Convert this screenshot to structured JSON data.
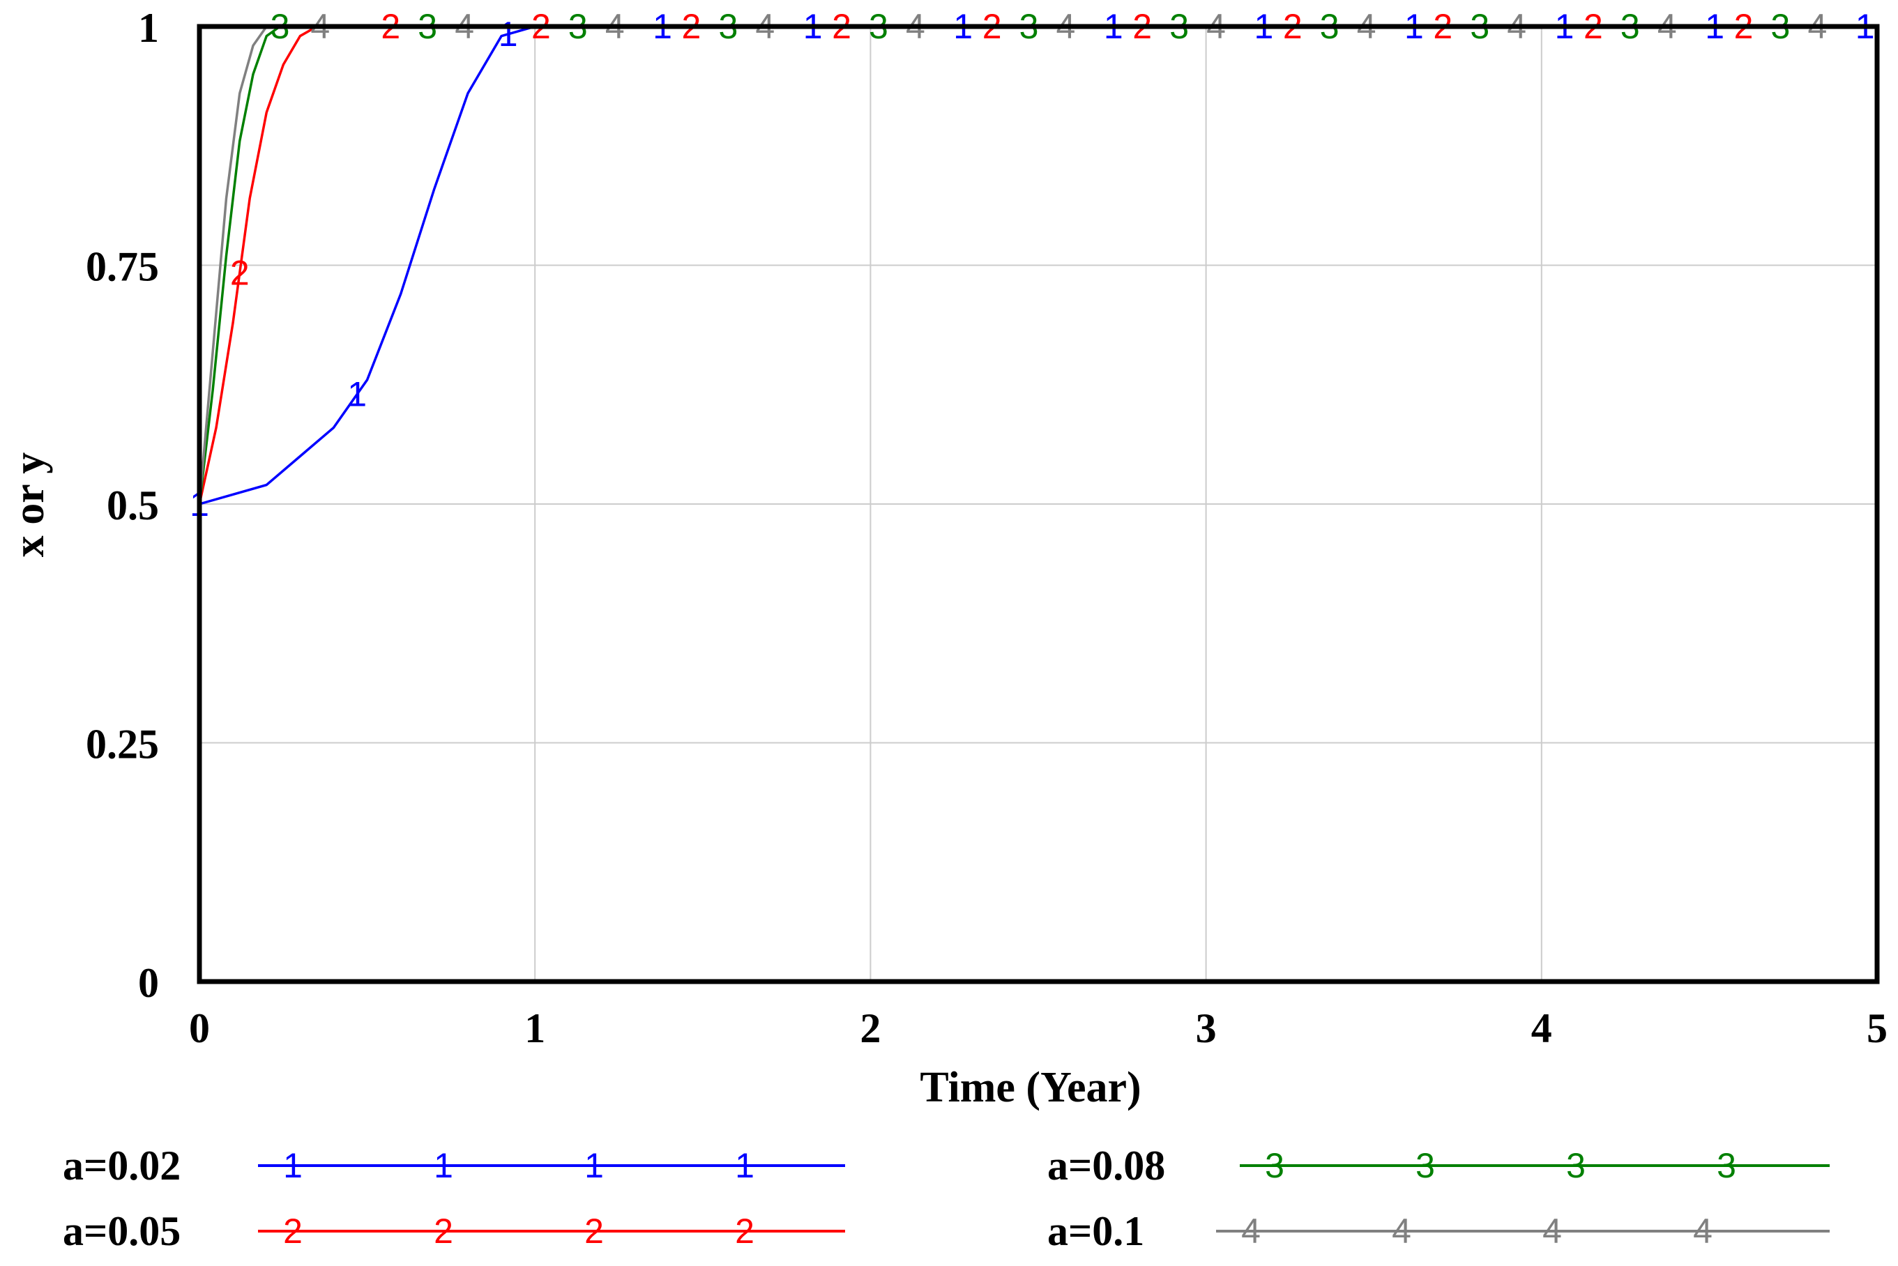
{
  "chart_data": {
    "type": "line",
    "title": "",
    "xlabel": "Time (Year)",
    "ylabel": "x or y",
    "xlim": [
      0,
      5
    ],
    "ylim": [
      0,
      1
    ],
    "x_ticks": [
      "0",
      "1",
      "2",
      "3",
      "4",
      "5"
    ],
    "y_ticks": [
      "0",
      "0.25",
      "0.5",
      "0.75",
      "1"
    ],
    "grid": true,
    "legend_position": "bottom",
    "series": [
      {
        "name": "a=0.02",
        "marker": "1",
        "color": "#0000ff",
        "x": [
          0,
          0.1,
          0.2,
          0.3,
          0.4,
          0.5,
          0.6,
          0.7,
          0.8,
          0.9,
          1.0,
          1.1,
          5
        ],
        "y": [
          0.5,
          0.51,
          0.52,
          0.55,
          0.58,
          0.63,
          0.72,
          0.83,
          0.93,
          0.99,
          1.0,
          1.0,
          1.0
        ]
      },
      {
        "name": "a=0.05",
        "marker": "2",
        "color": "#ff0000",
        "x": [
          0,
          0.05,
          0.1,
          0.15,
          0.2,
          0.25,
          0.3,
          0.35,
          0.4,
          5
        ],
        "y": [
          0.5,
          0.58,
          0.69,
          0.82,
          0.91,
          0.96,
          0.99,
          1.0,
          1.0,
          1.0
        ]
      },
      {
        "name": "a=0.08",
        "marker": "3",
        "color": "#008000",
        "x": [
          0,
          0.04,
          0.08,
          0.12,
          0.16,
          0.2,
          0.24,
          0.28,
          5
        ],
        "y": [
          0.5,
          0.62,
          0.76,
          0.88,
          0.95,
          0.99,
          1.0,
          1.0,
          1.0
        ]
      },
      {
        "name": "a=0.1",
        "marker": "4",
        "color": "#808080",
        "x": [
          0,
          0.04,
          0.08,
          0.12,
          0.16,
          0.2,
          0.24,
          5
        ],
        "y": [
          0.5,
          0.66,
          0.82,
          0.93,
          0.98,
          1.0,
          1.0,
          1.0
        ]
      }
    ]
  }
}
